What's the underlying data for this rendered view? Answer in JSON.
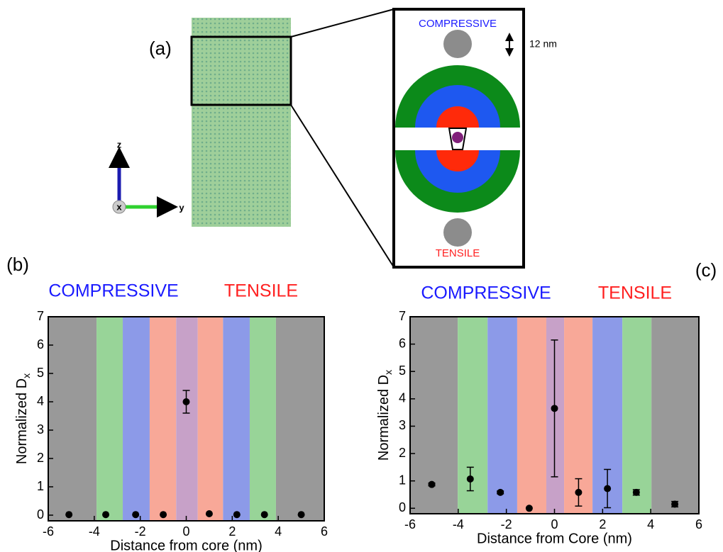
{
  "figure": {
    "panel_label": "(a)",
    "inset_top": "COMPRESSIVE",
    "inset_bottom": "TENSILE",
    "scale": "12 nm",
    "axis_z": "z",
    "axis_y": "y",
    "axis_x": "x"
  },
  "chart_data": [
    {
      "type": "scatter",
      "panel_label": "(b)",
      "annotations": [
        {
          "text": "COMPRESSIVE",
          "color": "#1a1aff"
        },
        {
          "text": "TENSILE",
          "color": "#ff2020"
        }
      ],
      "xlabel": "Distance from core (nm)",
      "ylabel": "Normalized D",
      "ylabel_sub": "x",
      "x": [
        -5.1,
        -3.5,
        -2.2,
        -1.0,
        0,
        1.0,
        2.2,
        3.4,
        5.0
      ],
      "values": [
        0.02,
        0.02,
        0.02,
        0.02,
        4.0,
        0.05,
        0.02,
        0.02,
        0.02
      ],
      "errors": [
        null,
        null,
        null,
        null,
        0.4,
        null,
        null,
        null,
        null
      ],
      "color": "#000000",
      "xlim": [
        -6,
        6
      ],
      "ylim": [
        -0.2,
        7
      ],
      "xticks": [
        -6,
        -4,
        -2,
        0,
        2,
        4,
        6
      ],
      "yticks": [
        0,
        1,
        2,
        3,
        4,
        5,
        6,
        7
      ],
      "bands": [
        {
          "from": -6,
          "to": -3.9,
          "color": "#999999"
        },
        {
          "from": -3.9,
          "to": -2.76,
          "color": "#98d498"
        },
        {
          "from": -2.76,
          "to": -1.59,
          "color": "#8c9ae8"
        },
        {
          "from": -1.59,
          "to": -0.44,
          "color": "#f8a898"
        },
        {
          "from": -0.44,
          "to": 0.5,
          "color": "#c7a1c8"
        },
        {
          "from": 0.5,
          "to": 1.6,
          "color": "#f8a898"
        },
        {
          "from": 1.6,
          "to": 2.76,
          "color": "#8c9ae8"
        },
        {
          "from": 2.76,
          "to": 3.9,
          "color": "#98d498"
        },
        {
          "from": 3.9,
          "to": 6,
          "color": "#999999"
        }
      ]
    },
    {
      "type": "scatter",
      "panel_label": "(c)",
      "annotations": [
        {
          "text": "COMPRESSIVE",
          "color": "#1a1aff"
        },
        {
          "text": "TENSILE",
          "color": "#ff2020"
        }
      ],
      "xlabel": "Distance from Core (nm)",
      "ylabel": "Normalized D",
      "ylabel_sub": "x",
      "x": [
        -5.1,
        -3.5,
        -2.25,
        -1.05,
        0,
        1.0,
        2.2,
        3.4,
        5.0
      ],
      "values": [
        0.87,
        1.07,
        0.58,
        0.0,
        3.65,
        0.58,
        0.72,
        0.58,
        0.15
      ],
      "errors": [
        0.05,
        0.43,
        0.05,
        null,
        2.5,
        0.5,
        0.7,
        0.1,
        0.1
      ],
      "color": "#000000",
      "xlim": [
        -6,
        6
      ],
      "ylim": [
        -0.2,
        7
      ],
      "xticks": [
        -6,
        -4,
        -2,
        0,
        2,
        4,
        6
      ],
      "yticks": [
        0,
        1,
        2,
        3,
        4,
        5,
        6,
        7
      ],
      "bands": [
        {
          "from": -6,
          "to": -4.02,
          "color": "#999999"
        },
        {
          "from": -4.02,
          "to": -2.78,
          "color": "#98d498"
        },
        {
          "from": -2.78,
          "to": -1.55,
          "color": "#8c9ae8"
        },
        {
          "from": -1.55,
          "to": -0.34,
          "color": "#f8a898"
        },
        {
          "from": -0.34,
          "to": 0.4,
          "color": "#c7a1c8"
        },
        {
          "from": 0.4,
          "to": 1.58,
          "color": "#f8a898"
        },
        {
          "from": 1.58,
          "to": 2.82,
          "color": "#8c9ae8"
        },
        {
          "from": 2.82,
          "to": 4.03,
          "color": "#98d498"
        },
        {
          "from": 4.03,
          "to": 6,
          "color": "#999999"
        }
      ]
    }
  ]
}
